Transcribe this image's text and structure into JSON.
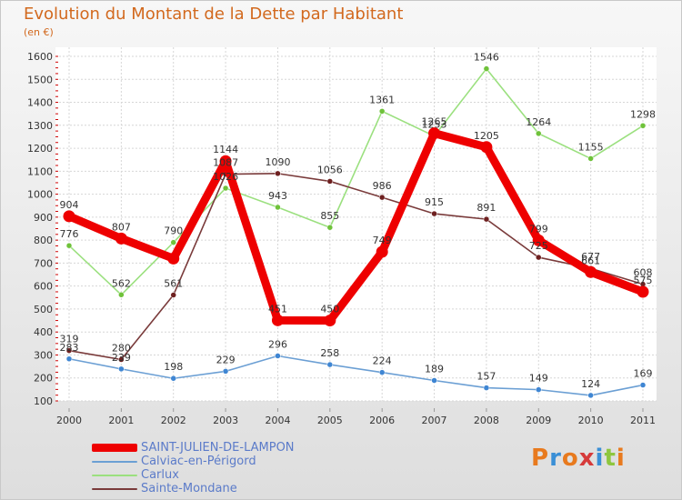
{
  "title": "Evolution du Montant de la Dette par Habitant",
  "subtitle": "(en €)",
  "logo": {
    "text": "Proxiti",
    "letters": [
      "P",
      "r",
      "o",
      "x",
      "i",
      "t",
      "i"
    ],
    "colors": [
      "#e87a1e",
      "#3a8fd6",
      "#e87a1e",
      "#d63a3a",
      "#3a8fd6",
      "#8ec63f",
      "#e87a1e"
    ]
  },
  "chart_data": {
    "type": "line",
    "title": "Evolution du Montant de la Dette par Habitant",
    "ylabel": "(en €)",
    "xlabel": "",
    "categories": [
      "2000",
      "2001",
      "2002",
      "2003",
      "2004",
      "2005",
      "2006",
      "2007",
      "2008",
      "2009",
      "2010",
      "2011"
    ],
    "ylim": [
      100,
      1600
    ],
    "yticks": [
      100,
      200,
      300,
      400,
      500,
      600,
      700,
      800,
      900,
      1000,
      1100,
      1200,
      1300,
      1400,
      1500,
      1600
    ],
    "grid": true,
    "legend_position": "bottom-left",
    "series": [
      {
        "name": "SAINT-JULIEN-DE-LAMPON",
        "color": "#ee0000",
        "emphasis": true,
        "values": [
          904,
          807,
          720,
          1144,
          451,
          450,
          749,
          1265,
          1205,
          799,
          661,
          575
        ],
        "labels": [
          "904",
          "807",
          "",
          "1144",
          "451",
          "450",
          "749",
          "1265",
          "1205",
          "799",
          "661",
          "575"
        ]
      },
      {
        "name": "Calviac-en-Périgord",
        "color": "#6b9fd4",
        "dot": "#3f86d3",
        "values": [
          283,
          239,
          198,
          229,
          296,
          258,
          224,
          189,
          157,
          149,
          124,
          169
        ],
        "labels": [
          "283",
          "239",
          "198",
          "229",
          "296",
          "258",
          "224",
          "189",
          "157",
          "149",
          "124",
          "169"
        ]
      },
      {
        "name": "Carlux",
        "color": "#9be07f",
        "dot": "#6fc23a",
        "values": [
          776,
          562,
          790,
          1026,
          943,
          855,
          1361,
          1253,
          1546,
          1264,
          1155,
          1298
        ],
        "labels": [
          "776",
          "562",
          "790",
          "1026",
          "943",
          "855",
          "1361",
          "1253",
          "1546",
          "1264",
          "1155",
          "1298"
        ]
      },
      {
        "name": "Sainte-Mondane",
        "color": "#7a3b3b",
        "dot": "#6e2020",
        "values": [
          319,
          280,
          561,
          1087,
          1090,
          1056,
          986,
          915,
          891,
          725,
          677,
          608
        ],
        "labels": [
          "319",
          "280",
          "561",
          "1087",
          "1090",
          "1056",
          "986",
          "915",
          "891",
          "725",
          "677",
          "608"
        ]
      }
    ]
  }
}
